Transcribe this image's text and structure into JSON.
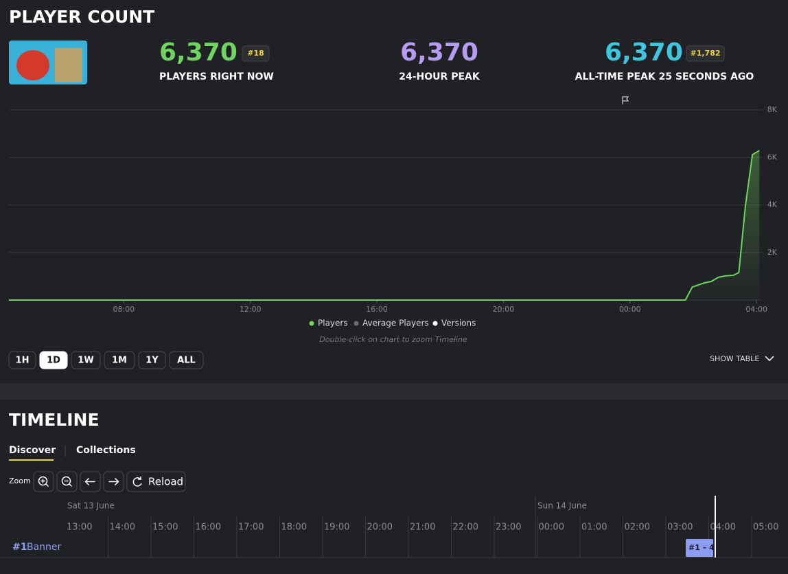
{
  "header": {
    "title": "PLAYER COUNT"
  },
  "stats": [
    {
      "value": "6,370",
      "label": "PLAYERS RIGHT NOW",
      "rank": "#18",
      "color": "#6fd35f"
    },
    {
      "value": "6,370",
      "label": "24-HOUR PEAK",
      "color": "#b79cf4"
    },
    {
      "value": "6,370",
      "label": "ALL-TIME PEAK 25 SECONDS AGO",
      "rank": "#1,782",
      "color": "#3ec5df"
    }
  ],
  "chart_data": {
    "type": "line",
    "x": [
      4.37,
      25.75,
      25.97,
      26.36,
      26.57,
      26.79,
      27.0,
      27.27,
      27.44,
      27.65,
      27.87,
      28.09
    ],
    "series": [
      {
        "name": "Players",
        "color": "#6fd35f",
        "values": [
          0,
          0,
          550,
          725,
          783,
          957,
          1014,
          1043,
          1159,
          3970,
          6116,
          6290
        ]
      }
    ],
    "legend": [
      {
        "name": "Players",
        "color": "#6fd35f"
      },
      {
        "name": "Average Players",
        "color": "#6b6c70"
      },
      {
        "name": "Versions",
        "color": "#ffffff"
      }
    ],
    "note": "Double-click on chart to zoom Timeline",
    "xlim": [
      4.37,
      28.17
    ],
    "xticks": [
      {
        "value": 8,
        "label": "08:00"
      },
      {
        "value": 12,
        "label": "12:00"
      },
      {
        "value": 16,
        "label": "16:00"
      },
      {
        "value": 20,
        "label": "20:00"
      },
      {
        "value": 24,
        "label": "00:00"
      },
      {
        "value": 28,
        "label": "04:00"
      }
    ],
    "ylim": [
      0,
      8000
    ],
    "yticks": [
      {
        "value": 2000,
        "label": "2K"
      },
      {
        "value": 4000,
        "label": "4K"
      },
      {
        "value": 6000,
        "label": "6K"
      },
      {
        "value": 8000,
        "label": "8K"
      }
    ],
    "grid": true
  },
  "ranges": {
    "options": [
      "1H",
      "1D",
      "1W",
      "1M",
      "1Y",
      "ALL"
    ],
    "selected": 1,
    "show_table": "SHOW TABLE"
  },
  "timeline": {
    "title": "TIMELINE",
    "tabs": [
      "Discover",
      "Collections"
    ],
    "zoom": "Zoom",
    "reload": "Reload",
    "dates": [
      "Sat 13 June",
      "Sun 14 June"
    ],
    "hours": [
      "13:00",
      "14:00",
      "15:00",
      "16:00",
      "17:00",
      "18:00",
      "19:00",
      "20:00",
      "21:00",
      "22:00",
      "23:00",
      "00:00",
      "01:00",
      "02:00",
      "03:00",
      "04:00",
      "05:00"
    ],
    "row": {
      "rank": "#1",
      "name": "Banner"
    },
    "item": "#1 – 4"
  }
}
